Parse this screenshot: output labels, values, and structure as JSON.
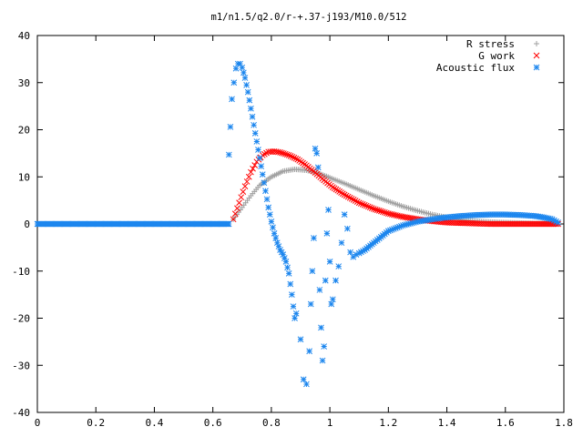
{
  "chart_data": {
    "type": "scatter",
    "title": "m1/n1.5/q2.0/r-+.37-j193/M10.0/512",
    "xlabel": "",
    "ylabel": "",
    "xlim": [
      0,
      1.8
    ],
    "ylim": [
      -40,
      40
    ],
    "x_ticks": [
      "0",
      "0.2",
      "0.4",
      "0.6",
      "0.8",
      "1",
      "1.2",
      "1.4",
      "1.6",
      "1.8"
    ],
    "y_ticks": [
      "-40",
      "-30",
      "-20",
      "-10",
      "0",
      "10",
      "20",
      "30",
      "40"
    ],
    "grid": false,
    "legend_position": "top-right",
    "series": [
      {
        "name": "R stress",
        "color": "#a0a0a0",
        "marker": "plus",
        "x": [
          0.67,
          0.7,
          0.73,
          0.76,
          0.8,
          0.84,
          0.88,
          0.92,
          0.96,
          1.0,
          1.05,
          1.1,
          1.15,
          1.2,
          1.25,
          1.3,
          1.35,
          1.4,
          1.45,
          1.5,
          1.55,
          1.6,
          1.65,
          1.7,
          1.75,
          1.78
        ],
        "y": [
          1.0,
          3.5,
          6.0,
          8.2,
          10.0,
          11.2,
          11.6,
          11.4,
          10.8,
          9.8,
          8.6,
          7.3,
          6.0,
          4.8,
          3.7,
          2.8,
          2.0,
          1.4,
          0.9,
          0.6,
          0.4,
          0.3,
          0.2,
          0.1,
          0.05,
          0.0
        ]
      },
      {
        "name": "G work",
        "color": "#ff0000",
        "marker": "cross",
        "x": [
          0.67,
          0.69,
          0.71,
          0.73,
          0.75,
          0.77,
          0.79,
          0.81,
          0.83,
          0.86,
          0.89,
          0.92,
          0.95,
          0.98,
          1.01,
          1.05,
          1.1,
          1.15,
          1.2,
          1.25,
          1.3,
          1.35,
          1.4,
          1.45,
          1.5,
          1.55,
          1.6,
          1.65,
          1.7,
          1.75,
          1.78
        ],
        "y": [
          1.0,
          4.5,
          8.0,
          11.0,
          13.2,
          14.6,
          15.3,
          15.4,
          15.2,
          14.6,
          13.7,
          12.4,
          10.9,
          9.3,
          7.8,
          6.2,
          4.5,
          3.2,
          2.2,
          1.5,
          1.0,
          0.6,
          0.3,
          0.2,
          0.1,
          0.0,
          0.0,
          0.0,
          0.0,
          0.0,
          0.0
        ]
      },
      {
        "name": "Acoustic flux",
        "color": "#1c86ee",
        "marker": "star",
        "x": [
          0.655,
          0.665,
          0.672,
          0.679,
          0.686,
          0.693,
          0.7,
          0.71,
          0.72,
          0.73,
          0.74,
          0.75,
          0.76,
          0.77,
          0.78,
          0.79,
          0.8,
          0.81,
          0.82,
          0.83,
          0.84,
          0.85,
          0.86,
          0.87,
          0.88,
          0.885,
          0.9,
          0.91,
          0.92,
          0.93,
          0.935,
          0.94,
          0.945,
          0.95,
          0.955,
          0.96,
          0.965,
          0.97,
          0.975,
          0.98,
          0.985,
          0.99,
          0.995,
          1.0,
          1.005,
          1.01,
          1.02,
          1.03,
          1.04,
          1.05,
          1.06,
          1.07,
          1.08,
          1.09,
          1.1,
          1.12,
          1.15,
          1.2,
          1.25,
          1.3,
          1.35,
          1.4,
          1.45,
          1.5,
          1.55,
          1.6,
          1.65,
          1.7,
          1.73,
          1.76,
          1.78
        ],
        "y": [
          14.7,
          26.5,
          30.0,
          33.0,
          34.0,
          34.0,
          33.2,
          31.0,
          28.0,
          24.5,
          21.0,
          17.5,
          14.0,
          10.5,
          7.0,
          3.5,
          0.5,
          -2.0,
          -4.0,
          -5.5,
          -6.5,
          -8.0,
          -10.5,
          -15.0,
          -20.0,
          -19.0,
          -24.5,
          -33.0,
          -34.0,
          -27.0,
          -17.0,
          -10.0,
          -3.0,
          16.0,
          15.0,
          12.0,
          -14.0,
          -22.0,
          -29.0,
          -26.0,
          -12.0,
          -2.0,
          3.0,
          -8.0,
          -17.0,
          -16.0,
          -12.0,
          -9.0,
          -4.0,
          2.0,
          -1.0,
          -6.0,
          -7.0,
          -6.5,
          -6.2,
          -5.5,
          -4.0,
          -1.5,
          -0.3,
          0.5,
          1.0,
          1.4,
          1.7,
          1.9,
          2.0,
          2.0,
          1.9,
          1.7,
          1.4,
          1.0,
          0.3
        ],
        "baseline_x": [
          0,
          0.655
        ],
        "baseline_y": 0
      }
    ]
  }
}
